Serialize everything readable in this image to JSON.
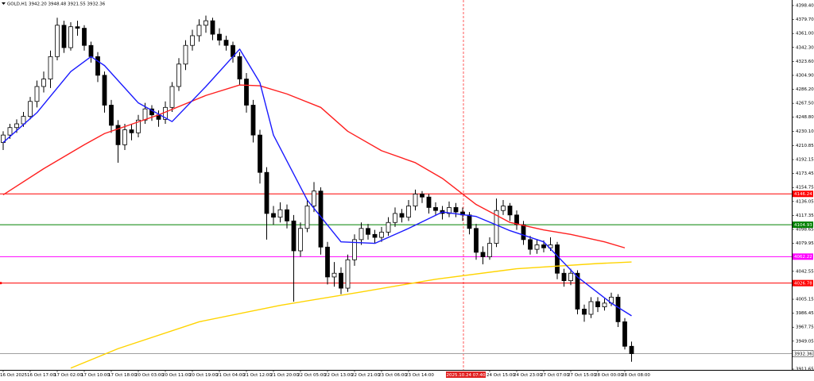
{
  "chart_data": {
    "type": "candlestick",
    "symbol": "GOLD,H1",
    "quote_labels": [
      "3942.20",
      "3948.48",
      "3921.55",
      "3932.36"
    ],
    "crosshair_label": "2025.10.24 07:40",
    "categories": [
      "16 Oct 2025",
      null,
      null,
      null,
      "16 Oct 17:00",
      null,
      null,
      null,
      "17 Oct 02:00",
      null,
      null,
      null,
      "17 Oct 10:00",
      null,
      null,
      null,
      "17 Oct 18:00",
      null,
      null,
      null,
      "20 Oct 03:00",
      null,
      null,
      null,
      "20 Oct 11:00",
      null,
      null,
      null,
      "20 Oct 19:00",
      null,
      null,
      null,
      "21 Oct 04:00",
      null,
      null,
      null,
      "21 Oct 12:00",
      null,
      null,
      null,
      "21 Oct 20:00",
      null,
      null,
      null,
      "22 Oct 05:00",
      null,
      null,
      null,
      "22 Oct 13:00",
      null,
      null,
      null,
      "22 Oct 21:00",
      null,
      null,
      null,
      "23 Oct 06:00",
      null,
      null,
      null,
      "23 Oct 14:00",
      null,
      null,
      null,
      null,
      null,
      null,
      null,
      null,
      null,
      null,
      null,
      "24 Oct 15:00",
      null,
      null,
      null,
      "24 Oct 23:00",
      null,
      null,
      null,
      "27 Oct 07:00",
      null,
      null,
      null,
      "27 Oct 15:00",
      null,
      null,
      null,
      "28 Oct 00:00",
      null,
      null,
      null,
      "28 Oct 08:00",
      null
    ],
    "ohlc": [
      [
        4215,
        4230,
        4205,
        4225
      ],
      [
        4225,
        4240,
        4220,
        4235
      ],
      [
        4235,
        4246,
        4228,
        4240
      ],
      [
        4240,
        4256,
        4236,
        4250
      ],
      [
        4250,
        4276,
        4246,
        4270
      ],
      [
        4270,
        4298,
        4262,
        4290
      ],
      [
        4290,
        4310,
        4282,
        4300
      ],
      [
        4300,
        4338,
        4288,
        4330
      ],
      [
        4330,
        4382,
        4325,
        4372
      ],
      [
        4372,
        4378,
        4335,
        4342
      ],
      [
        4342,
        4376,
        4338,
        4370
      ],
      [
        4370,
        4378,
        4358,
        4368
      ],
      [
        4368,
        4372,
        4338,
        4345
      ],
      [
        4345,
        4350,
        4322,
        4330
      ],
      [
        4330,
        4336,
        4296,
        4305
      ],
      [
        4305,
        4310,
        4255,
        4265
      ],
      [
        4265,
        4272,
        4228,
        4238
      ],
      [
        4238,
        4245,
        4188,
        4212
      ],
      [
        4212,
        4240,
        4205,
        4232
      ],
      [
        4232,
        4240,
        4218,
        4228
      ],
      [
        4228,
        4252,
        4222,
        4245
      ],
      [
        4245,
        4268,
        4240,
        4260
      ],
      [
        4260,
        4265,
        4244,
        4252
      ],
      [
        4252,
        4258,
        4236,
        4246
      ],
      [
        4246,
        4270,
        4240,
        4262
      ],
      [
        4262,
        4296,
        4256,
        4290
      ],
      [
        4290,
        4328,
        4284,
        4320
      ],
      [
        4320,
        4352,
        4312,
        4345
      ],
      [
        4345,
        4366,
        4338,
        4358
      ],
      [
        4358,
        4380,
        4350,
        4372
      ],
      [
        4372,
        4385,
        4362,
        4378
      ],
      [
        4378,
        4382,
        4352,
        4360
      ],
      [
        4360,
        4368,
        4345,
        4352
      ],
      [
        4352,
        4358,
        4338,
        4345
      ],
      [
        4345,
        4350,
        4322,
        4330
      ],
      [
        4330,
        4336,
        4292,
        4300
      ],
      [
        4300,
        4308,
        4255,
        4265
      ],
      [
        4265,
        4272,
        4215,
        4225
      ],
      [
        4225,
        4232,
        4160,
        4175
      ],
      [
        4175,
        4182,
        4085,
        4120
      ],
      [
        4120,
        4130,
        4105,
        4115
      ],
      [
        4115,
        4135,
        4108,
        4125
      ],
      [
        4125,
        4132,
        4100,
        4110
      ],
      [
        4110,
        4118,
        4002,
        4070
      ],
      [
        4070,
        4108,
        4062,
        4100
      ],
      [
        4100,
        4138,
        4095,
        4130
      ],
      [
        4130,
        4162,
        4122,
        4150
      ],
      [
        4150,
        4155,
        4065,
        4075
      ],
      [
        4075,
        4082,
        4025,
        4035
      ],
      [
        4035,
        4055,
        4022,
        4040
      ],
      [
        4040,
        4048,
        4012,
        4020
      ],
      [
        4020,
        4065,
        4015,
        4058
      ],
      [
        4058,
        4092,
        4050,
        4085
      ],
      [
        4085,
        4108,
        4078,
        4100
      ],
      [
        4100,
        4106,
        4085,
        4092
      ],
      [
        4092,
        4098,
        4080,
        4088
      ],
      [
        4088,
        4102,
        4082,
        4095
      ],
      [
        4095,
        4115,
        4090,
        4108
      ],
      [
        4108,
        4128,
        4102,
        4120
      ],
      [
        4120,
        4126,
        4108,
        4115
      ],
      [
        4115,
        4138,
        4110,
        4130
      ],
      [
        4130,
        4152,
        4124,
        4146
      ],
      [
        4146,
        4150,
        4134,
        4142
      ],
      [
        4142,
        4146,
        4120,
        4128
      ],
      [
        4128,
        4135,
        4118,
        4124
      ],
      [
        4124,
        4130,
        4112,
        4120
      ],
      [
        4120,
        4136,
        4115,
        4128
      ],
      [
        4128,
        4134,
        4115,
        4122
      ],
      [
        4122,
        4128,
        4110,
        4118
      ],
      [
        4118,
        4122,
        4092,
        4100
      ],
      [
        4100,
        4106,
        4058,
        4068
      ],
      [
        4068,
        4076,
        4052,
        4062
      ],
      [
        4062,
        4088,
        4058,
        4080
      ],
      [
        4080,
        4140,
        4075,
        4124
      ],
      [
        4124,
        4138,
        4118,
        4130
      ],
      [
        4130,
        4134,
        4110,
        4118
      ],
      [
        4118,
        4124,
        4098,
        4105
      ],
      [
        4105,
        4110,
        4078,
        4085
      ],
      [
        4085,
        4090,
        4065,
        4072
      ],
      [
        4072,
        4085,
        4066,
        4078
      ],
      [
        4078,
        4084,
        4068,
        4074
      ],
      [
        4074,
        4088,
        4070,
        4078
      ],
      [
        4078,
        4082,
        4032,
        4040
      ],
      [
        4040,
        4046,
        4022,
        4030
      ],
      [
        4030,
        4046,
        4024,
        4040
      ],
      [
        4040,
        4044,
        3985,
        3992
      ],
      [
        3992,
        3998,
        3975,
        3985
      ],
      [
        3985,
        4008,
        3980,
        4002
      ],
      [
        4002,
        4008,
        3988,
        3995
      ],
      [
        3995,
        4006,
        3990,
        4000
      ],
      [
        4000,
        4014,
        3996,
        4008
      ],
      [
        4008,
        4012,
        3968,
        3975
      ],
      [
        3975,
        3980,
        3938,
        3942.2
      ],
      [
        3942.2,
        3948.48,
        3921.55,
        3932.36
      ]
    ],
    "lines": [
      {
        "color": "#ff2020",
        "x": [
          0,
          6,
          12,
          15,
          23,
          30,
          35,
          38,
          42,
          47,
          51,
          56,
          61,
          65,
          70,
          75,
          80,
          84,
          89,
          92
        ],
        "values": [
          4145,
          4180,
          4212,
          4227,
          4252,
          4278,
          4292,
          4291,
          4280,
          4262,
          4230,
          4204,
          4188,
          4167,
          4132,
          4108,
          4098,
          4092,
          4082,
          4074
        ]
      },
      {
        "color": "#ffd400",
        "x": [
          10,
          17,
          29,
          41,
          53,
          64,
          76,
          88,
          93
        ],
        "values": [
          3913,
          3939,
          3975,
          3997,
          4015,
          4032,
          4046,
          4053,
          4055
        ]
      },
      {
        "color": "#1a1aff",
        "x": [
          0,
          5,
          10,
          13,
          15,
          20,
          25,
          30,
          35,
          38,
          40,
          45,
          50,
          55,
          60,
          65,
          70,
          75,
          80,
          85,
          90,
          93
        ],
        "values": [
          4215,
          4255,
          4310,
          4330,
          4318,
          4268,
          4243,
          4290,
          4340,
          4295,
          4225,
          4138,
          4082,
          4080,
          4100,
          4122,
          4116,
          4097,
          4082,
          4035,
          4000,
          3983
        ]
      }
    ],
    "levels": [
      {
        "value": 4146.24,
        "color": "#ff0000"
      },
      {
        "value": 4104.93,
        "color": "#008000"
      },
      {
        "value": 4062.22,
        "color": "#ff00ff"
      },
      {
        "value": 4026.78,
        "color": "#ff0000"
      },
      {
        "value": 3932.36,
        "color": "#a0a0a0"
      }
    ],
    "ylim": [
      3910.6,
      4405.8
    ],
    "yticks": [
      {
        "value": 4398.4,
        "label": "4398.40"
      },
      {
        "value": 4379.7,
        "label": "4379.70"
      },
      {
        "value": 4361.0,
        "label": "4361.00"
      },
      {
        "value": 4342.3,
        "label": "4342.30"
      },
      {
        "value": 4323.6,
        "label": "4323.60"
      },
      {
        "value": 4304.9,
        "label": "4304.90"
      },
      {
        "value": 4286.2,
        "label": "4286.20"
      },
      {
        "value": 4267.5,
        "label": "4267.50"
      },
      {
        "value": 4248.8,
        "label": "4248.80"
      },
      {
        "value": 4230.1,
        "label": "4230.10"
      },
      {
        "value": 4210.85,
        "label": "4210.85"
      },
      {
        "value": 4192.15,
        "label": "4192.15"
      },
      {
        "value": 4173.45,
        "label": "4173.45"
      },
      {
        "value": 4154.75,
        "label": "4154.75"
      },
      {
        "value": 4136.05,
        "label": "4136.05"
      },
      {
        "value": 4117.35,
        "label": "4117.35"
      },
      {
        "value": 4098.65,
        "label": "4098.65"
      },
      {
        "value": 4079.95,
        "label": "4079.95"
      },
      {
        "value": 4042.55,
        "label": "4042.55"
      },
      {
        "value": 4005.15,
        "label": "4005.15"
      },
      {
        "value": 3986.45,
        "label": "3986.45"
      },
      {
        "value": 3967.75,
        "label": "3967.75"
      },
      {
        "value": 3949.05,
        "label": "3949.05"
      },
      {
        "value": 3911.65,
        "label": "3911.65"
      }
    ]
  }
}
